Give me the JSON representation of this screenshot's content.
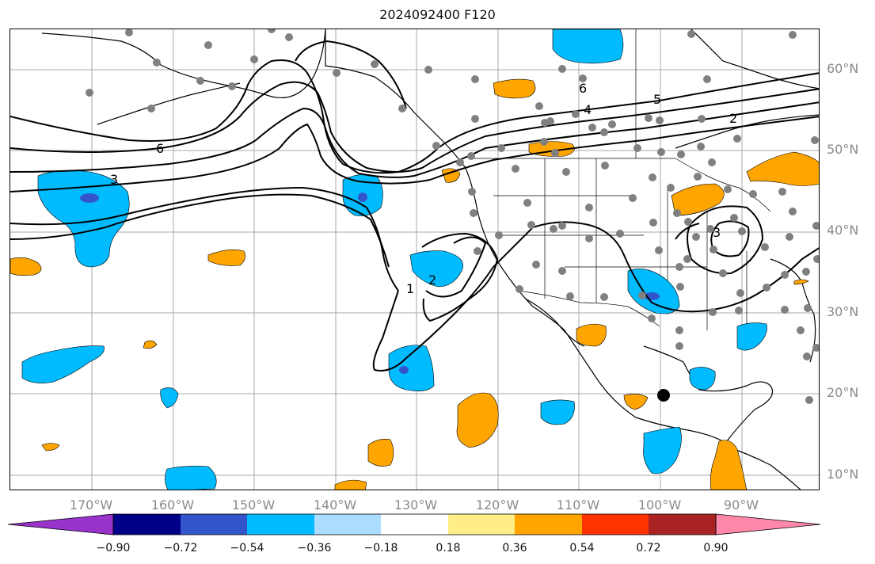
{
  "figure": {
    "title": "2024092400 F120",
    "lat_labels": [
      "60°N",
      "50°N",
      "40°N",
      "30°N",
      "20°N",
      "10°N"
    ],
    "lon_labels": [
      "170°W",
      "160°W",
      "150°W",
      "140°W",
      "130°W",
      "120°W",
      "110°W",
      "100°W",
      "90°W"
    ],
    "contour_labels": [
      "6",
      "4",
      "5",
      "2",
      "6",
      "3",
      "1",
      "2",
      "3"
    ],
    "colorbar": {
      "ticks": [
        "−0.90",
        "−0.72",
        "−0.54",
        "−0.36",
        "−0.18",
        "0.18",
        "0.36",
        "0.54",
        "0.72",
        "0.90"
      ],
      "colors": [
        "#9933cc",
        "#000088",
        "#3355cc",
        "#00bbff",
        "#aaddff",
        "#ffffff",
        "#ffee88",
        "#ffa500",
        "#ff3300",
        "#aa2222",
        "#ff88aa"
      ]
    },
    "shading_colors": {
      "negative": "#00bbff",
      "negative_strong": "#3355cc",
      "positive": "#ffa500",
      "positive_weak": "#ffee88"
    },
    "marker_colors": {
      "stations": "#808080",
      "highlight": "#000000"
    }
  }
}
